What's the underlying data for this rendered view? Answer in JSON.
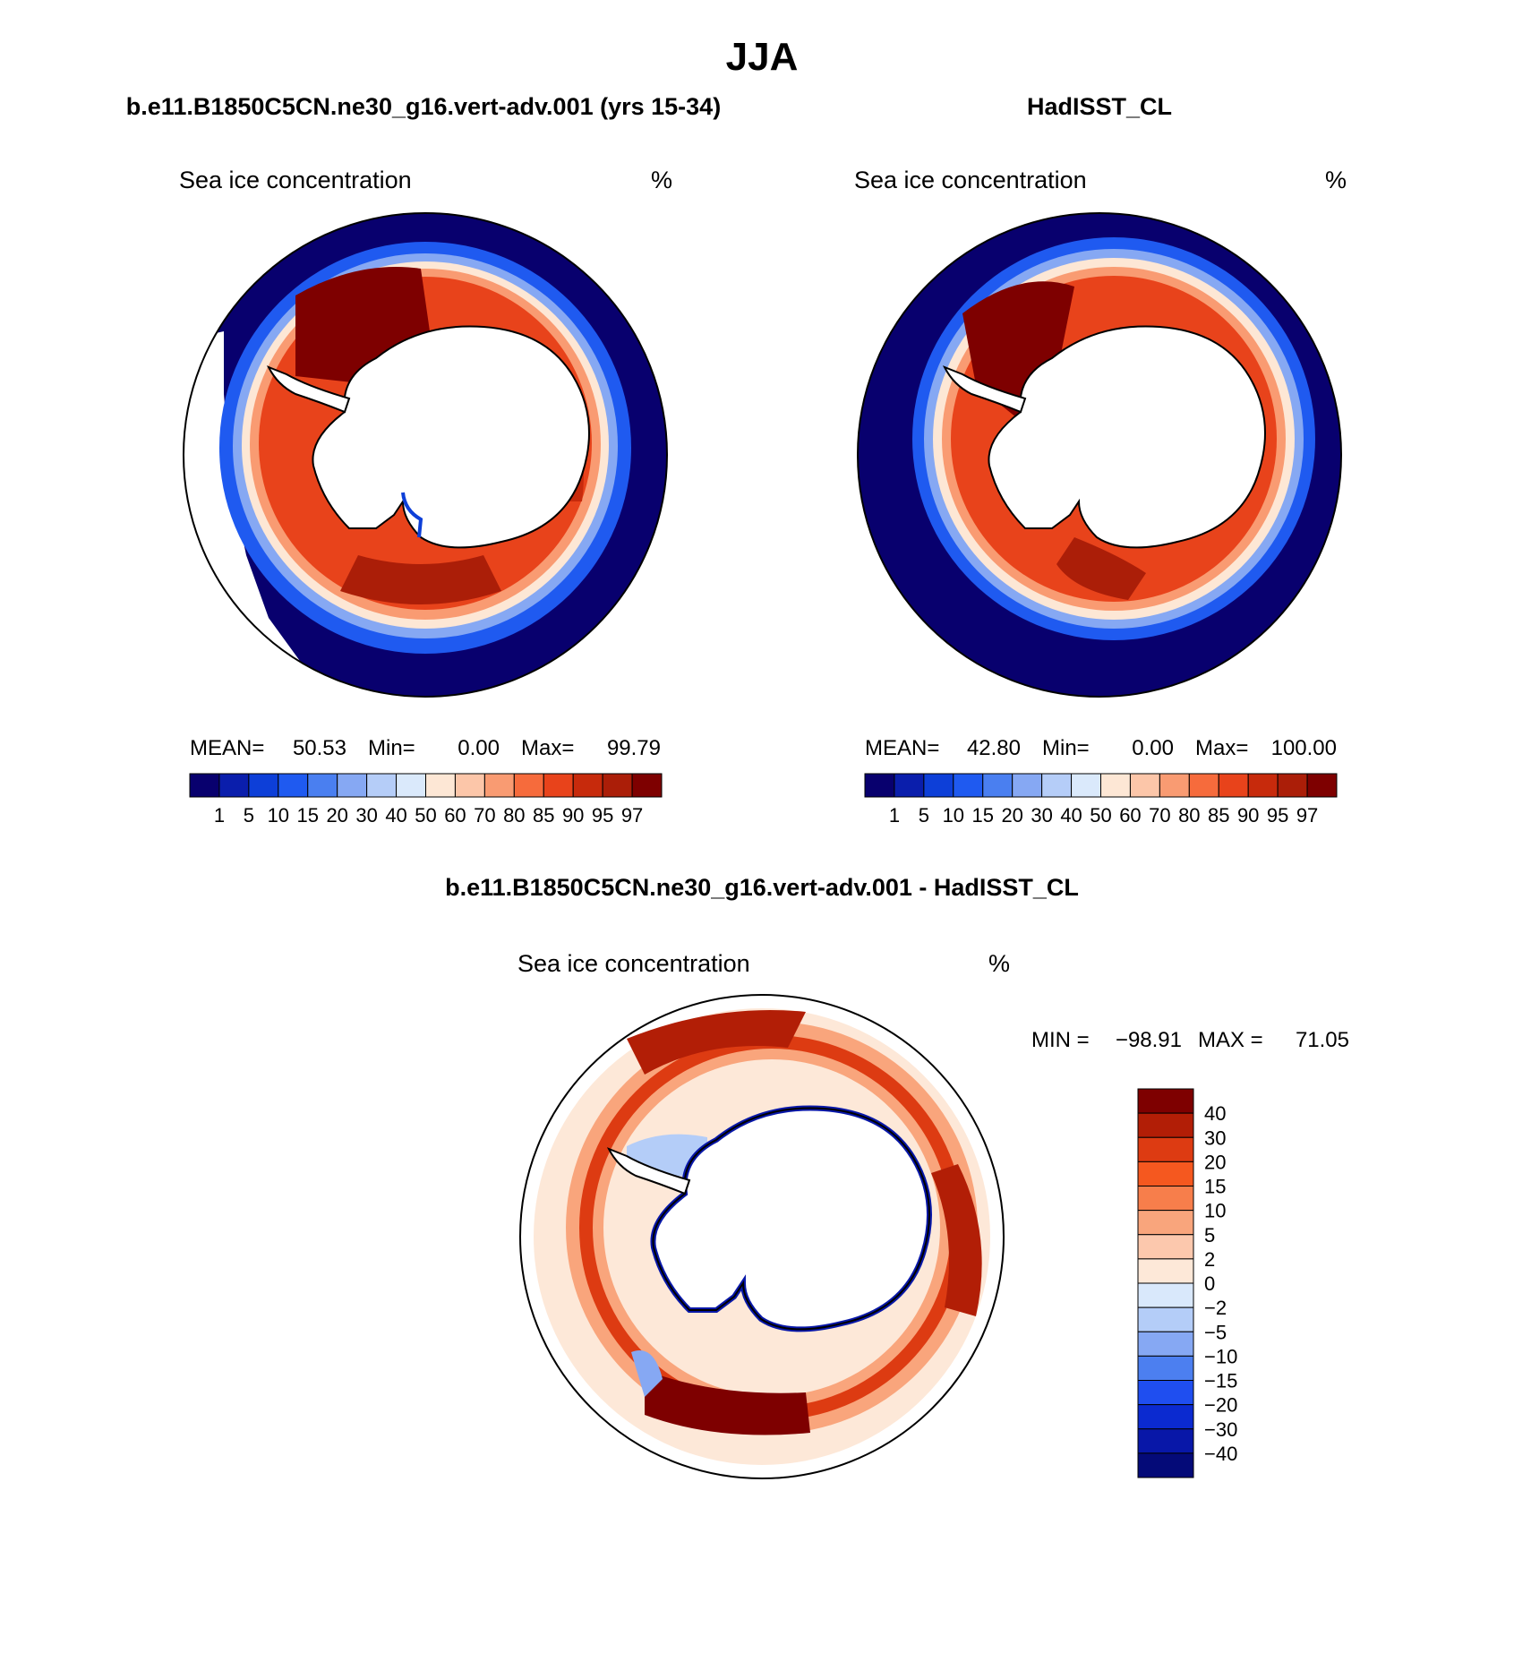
{
  "season": "JJA",
  "panels": [
    {
      "dataset_title": "b.e11.B1850C5CN.ne30_g16.vert-adv.001 (yrs 15-34)",
      "variable": "Sea ice concentration",
      "units": "%",
      "stats": {
        "mean_label": "MEAN=",
        "mean": "50.53",
        "min_label": "Min=",
        "min": "0.00",
        "max_label": "Max=",
        "max": "99.79"
      }
    },
    {
      "dataset_title": "HadISST_CL",
      "variable": "Sea ice concentration",
      "units": "%",
      "stats": {
        "mean_label": "MEAN=",
        "mean": "42.80",
        "min_label": "Min=",
        "min": "0.00",
        "max_label": "Max=",
        "max": "100.00"
      }
    }
  ],
  "abs_colorbar": {
    "labels": [
      "1",
      "5",
      "10",
      "15",
      "20",
      "30",
      "40",
      "50",
      "60",
      "70",
      "80",
      "85",
      "90",
      "95",
      "97"
    ],
    "colors": [
      "#08006e",
      "#0a1eac",
      "#0d3fd8",
      "#1f5af0",
      "#4a7ff0",
      "#86a8f3",
      "#b5cdf8",
      "#dae9fb",
      "#fde7d5",
      "#fcc6a9",
      "#f99b72",
      "#f66b3c",
      "#e8431b",
      "#c72a0c",
      "#ab1e08",
      "#7e0000"
    ]
  },
  "difference": {
    "title": "b.e11.B1850C5CN.ne30_g16.vert-adv.001 - HadISST_CL",
    "variable": "Sea ice concentration",
    "units": "%",
    "min_label": "MIN =",
    "min": "−98.91",
    "max_label": "MAX =",
    "max": "71.05",
    "colorbar_labels": [
      "40",
      "30",
      "20",
      "15",
      "10",
      "5",
      "2",
      "0",
      "−2",
      "−5",
      "−10",
      "−15",
      "−20",
      "−30",
      "−40"
    ],
    "colorbar_colors": [
      "#7e0000",
      "#b21e06",
      "#dd3b12",
      "#f5581f",
      "#f77e4b",
      "#f9a57c",
      "#fcc8ad",
      "#fde8d8",
      "#d9e8fb",
      "#b4cdf8",
      "#86a8f3",
      "#4c7ff0",
      "#1f4ef0",
      "#0b2ad0",
      "#0817a8",
      "#040a78"
    ]
  }
}
